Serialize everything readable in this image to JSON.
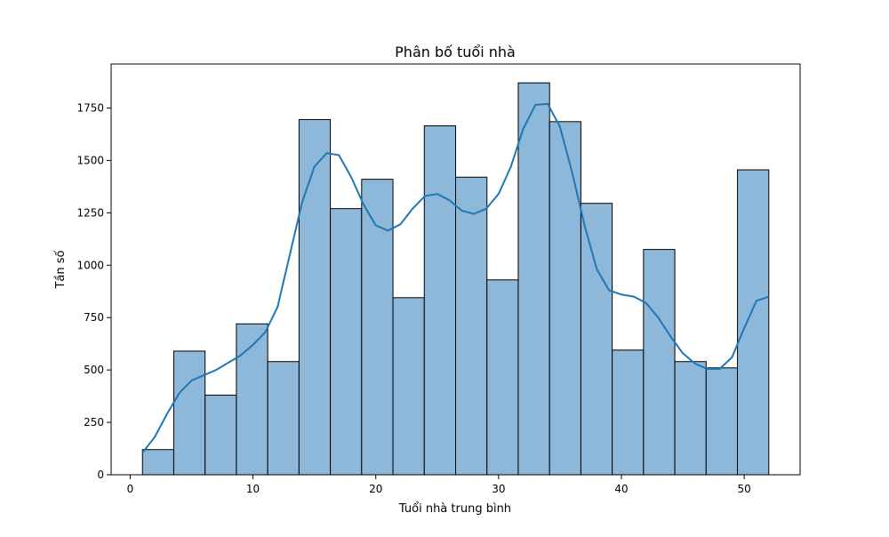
{
  "chart_data": {
    "type": "bar",
    "title": "Phân bố tuổi nhà",
    "xlabel": "Tuổi nhà trung bình",
    "ylabel": "Tần số",
    "xlim": [
      -1.55,
      54.55
    ],
    "ylim": [
      0,
      1960
    ],
    "xticks": [
      0,
      10,
      20,
      30,
      40,
      50
    ],
    "yticks": [
      0,
      250,
      500,
      750,
      1000,
      1250,
      1500,
      1750
    ],
    "grid": false,
    "bin_edges": [
      1,
      3.55,
      6.1,
      8.65,
      11.2,
      13.75,
      16.3,
      18.85,
      21.4,
      23.95,
      26.5,
      29.05,
      31.6,
      34.15,
      36.7,
      39.25,
      41.8,
      44.35,
      46.9,
      49.45,
      52
    ],
    "values": [
      120,
      590,
      380,
      720,
      540,
      1695,
      1270,
      1410,
      845,
      1665,
      1420,
      930,
      1870,
      1685,
      1295,
      595,
      1075,
      540,
      510,
      1455
    ],
    "kde": {
      "x": [
        1,
        2,
        3,
        4,
        5,
        6,
        7,
        8,
        9,
        10,
        11,
        12,
        13,
        14,
        15,
        16,
        17,
        18,
        19,
        20,
        21,
        22,
        23,
        24,
        25,
        26,
        27,
        28,
        29,
        30,
        31,
        32,
        33,
        34,
        35,
        36,
        37,
        38,
        39,
        40,
        41,
        42,
        43,
        44,
        45,
        46,
        47,
        48,
        49,
        50,
        51,
        52
      ],
      "y": [
        105,
        180,
        290,
        390,
        450,
        475,
        500,
        535,
        570,
        620,
        680,
        800,
        1050,
        1300,
        1470,
        1535,
        1525,
        1420,
        1290,
        1190,
        1165,
        1195,
        1270,
        1330,
        1340,
        1310,
        1260,
        1245,
        1270,
        1340,
        1470,
        1650,
        1765,
        1770,
        1660,
        1440,
        1190,
        980,
        880,
        860,
        850,
        820,
        750,
        660,
        580,
        530,
        505,
        505,
        560,
        700,
        830,
        850
      ]
    },
    "colors": {
      "bar_fill": "#8db8da",
      "bar_edge": "#000000",
      "kde_line": "#1f77b4"
    }
  }
}
